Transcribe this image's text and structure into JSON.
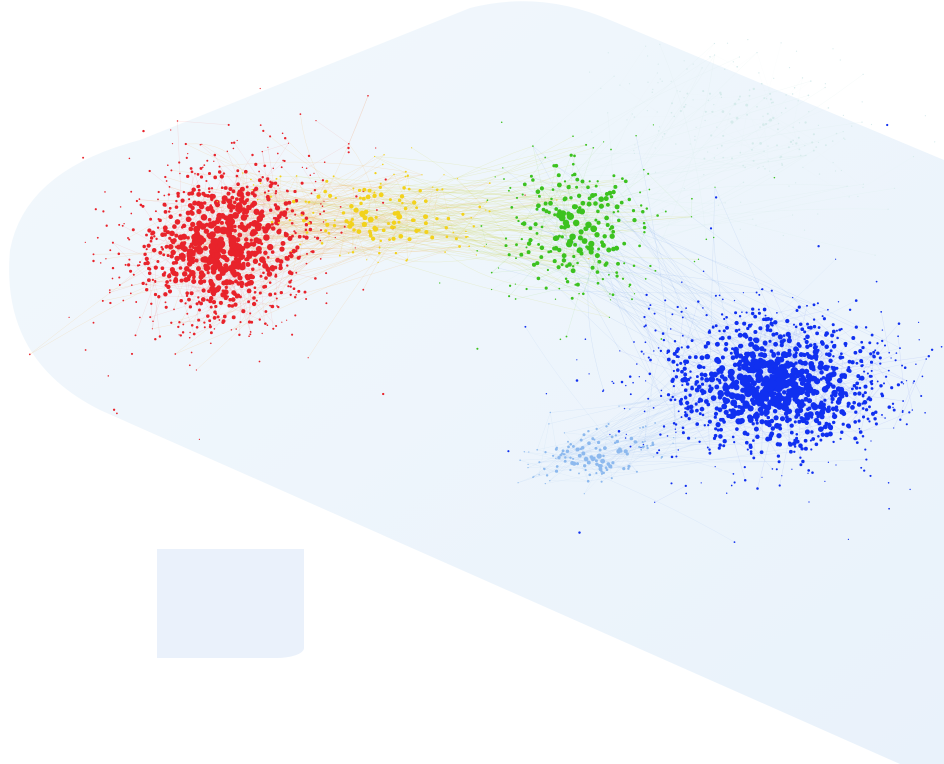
{
  "colors": {
    "page_background": "#ffffff",
    "backdrop_band": "#eef5fb",
    "backdrop_edge": "#e4eff9",
    "placeholder_card": "#eaf1fb"
  },
  "network_graph": {
    "clusters": [
      {
        "name": "red-cluster",
        "color": "#e8232b",
        "edge_color": "#f06a6a",
        "nodes": 900,
        "spread": 1.0
      },
      {
        "name": "yellow-cluster",
        "color": "#f2d21c",
        "edge_color": "#f3c95a",
        "nodes": 160,
        "spread": 1.0
      },
      {
        "name": "green-cluster",
        "color": "#3cc21f",
        "edge_color": "#8bd66e",
        "nodes": 260,
        "spread": 1.0
      },
      {
        "name": "faint-teal-cluster",
        "color": "#d6ebec",
        "edge_color": "#d9ecef",
        "nodes": 220,
        "spread": 1.0
      },
      {
        "name": "light-blue-cluster",
        "color": "#8db9ee",
        "edge_color": "#a9c9f0",
        "nodes": 140,
        "spread": 1.0
      },
      {
        "name": "blue-cluster",
        "color": "#1030f0",
        "edge_color": "#4a62f2",
        "nodes": 1100,
        "spread": 1.0
      }
    ],
    "labels_shown": false
  }
}
